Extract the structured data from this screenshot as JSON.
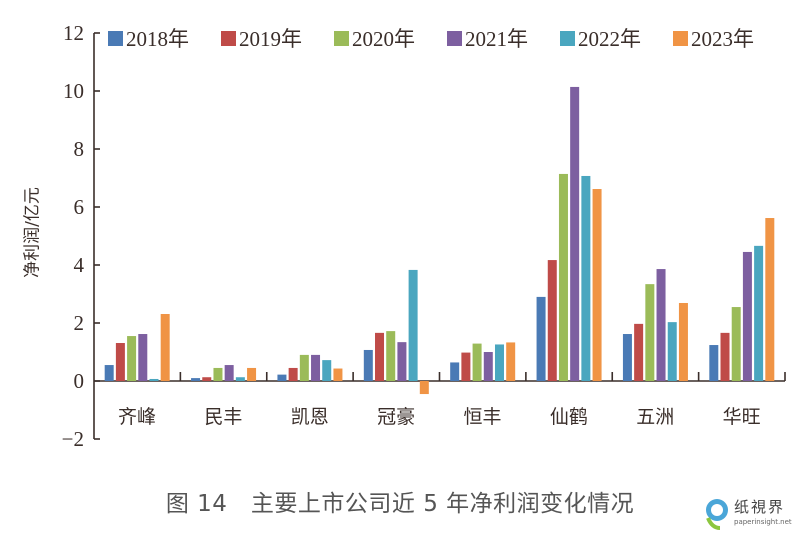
{
  "chart_data": {
    "type": "bar",
    "title": "图 14　主要上市公司近 5 年净利润变化情况",
    "xlabel": "",
    "ylabel": "净利润/亿元",
    "ylim": [
      -2,
      12
    ],
    "yticks": [
      12,
      10,
      8,
      6,
      4,
      2,
      0,
      -2
    ],
    "ytick_labels": [
      "12",
      "10",
      "8",
      "6",
      "4",
      "2",
      "0",
      "−2"
    ],
    "grid": false,
    "legend_position": "top",
    "categories": [
      "齐峰",
      "民丰",
      "凯恩",
      "冠豪",
      "恒丰",
      "仙鹤",
      "五洲",
      "华旺"
    ],
    "series": [
      {
        "name": "2018年",
        "color": "#4a7ab5",
        "values": [
          0.55,
          0.1,
          0.22,
          1.07,
          0.64,
          2.9,
          1.62,
          1.24
        ]
      },
      {
        "name": "2019年",
        "color": "#bf4b48",
        "values": [
          1.31,
          0.13,
          0.45,
          1.66,
          0.98,
          4.17,
          1.97,
          1.66
        ]
      },
      {
        "name": "2020年",
        "color": "#9bbb59",
        "values": [
          1.55,
          0.45,
          0.9,
          1.72,
          1.29,
          7.14,
          3.34,
          2.55
        ]
      },
      {
        "name": "2021年",
        "color": "#7d5fa0",
        "values": [
          1.62,
          0.55,
          0.9,
          1.34,
          1.0,
          10.14,
          3.86,
          4.45
        ]
      },
      {
        "name": "2022年",
        "color": "#4aa6bf",
        "values": [
          0.07,
          0.13,
          0.72,
          3.83,
          1.26,
          7.07,
          2.03,
          4.66
        ]
      },
      {
        "name": "2023年",
        "color": "#f09445",
        "values": [
          2.31,
          0.45,
          0.43,
          -0.45,
          1.33,
          6.62,
          2.69,
          5.62
        ]
      }
    ]
  },
  "caption": "图 14　主要上市公司近 5 年净利润变化情况",
  "watermark": {
    "name": "纸視界",
    "url": "paperinsight.net"
  }
}
